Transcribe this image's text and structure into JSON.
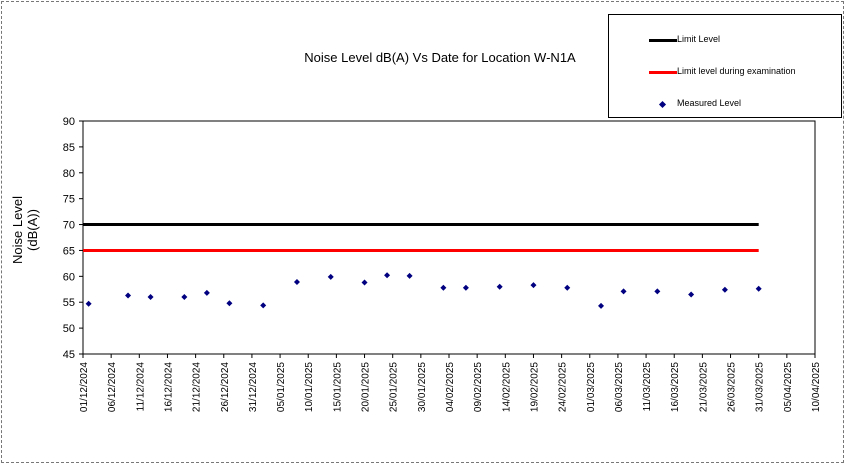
{
  "chart_data": {
    "type": "scatter",
    "title": "Noise Level dB(A) Vs Date for Location W-N1A",
    "ylabel": "Noise Level\n(dB(A))",
    "xlabel": "",
    "ylim": [
      45,
      90
    ],
    "yticks": [
      45,
      50,
      55,
      60,
      65,
      70,
      75,
      80,
      85,
      90
    ],
    "xlim": [
      "2024-12-01",
      "2025-04-10"
    ],
    "xtick_labels": [
      "01/12/2024",
      "06/12/2024",
      "11/12/2024",
      "16/12/2024",
      "21/12/2024",
      "26/12/2024",
      "31/12/2024",
      "05/01/2025",
      "10/01/2025",
      "15/01/2025",
      "20/01/2025",
      "25/01/2025",
      "30/01/2025",
      "04/02/2025",
      "09/02/2025",
      "14/02/2025",
      "19/02/2025",
      "24/02/2025",
      "01/03/2025",
      "06/03/2025",
      "11/03/2025",
      "16/03/2025",
      "21/03/2025",
      "26/03/2025",
      "31/03/2025",
      "05/04/2025",
      "10/04/2025"
    ],
    "grid": false,
    "legend_position": "top-right",
    "series": [
      {
        "name": "Limit Level",
        "kind": "line",
        "color": "#000000",
        "x": [
          "2024-12-01",
          "2025-03-31"
        ],
        "y": [
          70,
          70
        ]
      },
      {
        "name": "Limit level during examination",
        "kind": "line",
        "color": "#ff0000",
        "x": [
          "2024-12-01",
          "2025-03-31"
        ],
        "y": [
          65,
          65
        ]
      },
      {
        "name": "Measured Level",
        "kind": "points",
        "color": "#000080",
        "x": [
          "2024-12-02",
          "2024-12-09",
          "2024-12-13",
          "2024-12-19",
          "2024-12-23",
          "2024-12-27",
          "2025-01-02",
          "2025-01-08",
          "2025-01-14",
          "2025-01-20",
          "2025-01-24",
          "2025-01-28",
          "2025-02-03",
          "2025-02-07",
          "2025-02-13",
          "2025-02-19",
          "2025-02-25",
          "2025-03-03",
          "2025-03-07",
          "2025-03-13",
          "2025-03-19",
          "2025-03-25",
          "2025-03-31"
        ],
        "y": [
          54.7,
          56.3,
          56.0,
          56.0,
          56.8,
          54.8,
          54.4,
          58.9,
          59.9,
          58.8,
          60.2,
          60.1,
          57.8,
          57.8,
          58.0,
          58.3,
          57.8,
          54.3,
          57.1,
          57.1,
          56.5,
          57.4,
          57.6
        ]
      }
    ]
  }
}
